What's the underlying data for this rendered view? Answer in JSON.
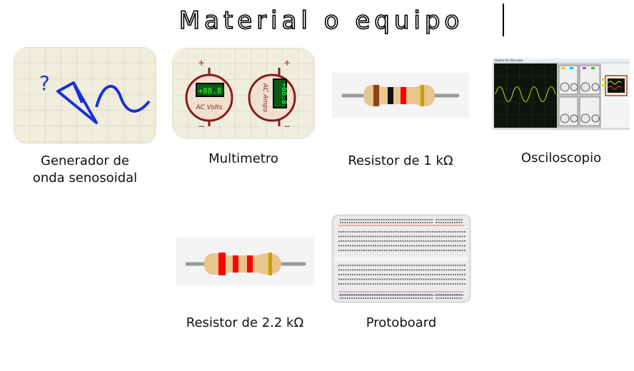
{
  "title": "Material o equipo",
  "items": [
    {
      "id": "generator",
      "caption_lines": [
        "Generador de",
        "onda senosoidal"
      ]
    },
    {
      "id": "multimeter",
      "caption_lines": [
        "Multimetro"
      ],
      "display_left": "+88.8",
      "display_right": "+88.8",
      "label_left": "AC Volts",
      "label_right": "AC Amps",
      "plus": "+",
      "minus": "−"
    },
    {
      "id": "resistor-1k",
      "caption_lines": [
        "Resistor de 1 kΩ"
      ],
      "bands": [
        "#8b4513",
        "#111111",
        "#ff0000",
        "#c8a000"
      ]
    },
    {
      "id": "oscilloscope",
      "caption_lines": [
        "Osciloscopio"
      ],
      "window_title": "Digital Oscilloscope"
    },
    {
      "id": "resistor-2k2",
      "caption_lines": [
        "Resistor de 2.2 kΩ"
      ],
      "bands": [
        "#ff0000",
        "#ff0000",
        "#ff0000",
        "#c8a000"
      ]
    },
    {
      "id": "protoboard",
      "caption_lines": [
        "Protoboard"
      ]
    }
  ],
  "generator_symbol": "?"
}
